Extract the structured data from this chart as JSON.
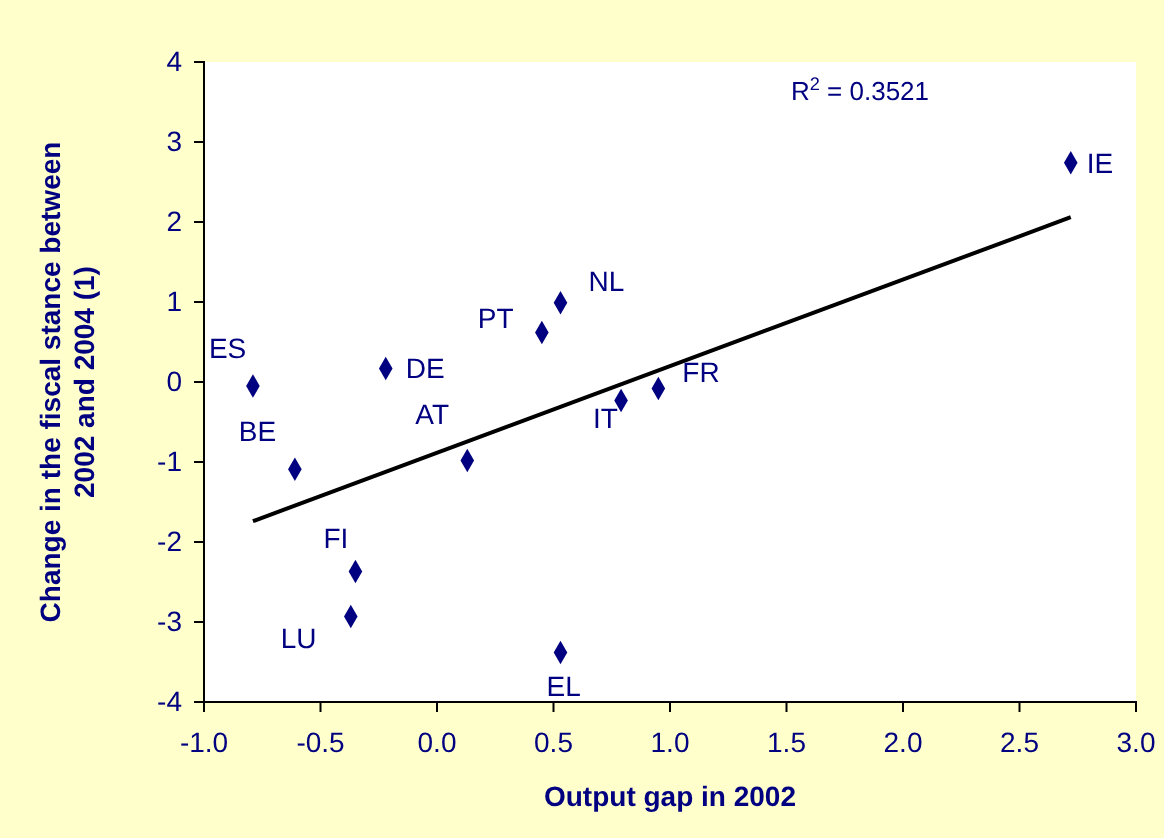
{
  "chart_data": {
    "type": "scatter",
    "xlabel": "Output gap in 2002",
    "ylabel": "Change in the fiscal stance between 2002 and 2004 (1)",
    "series": [
      {
        "color": "#000080",
        "marker": "diamond",
        "x": [
          -0.79,
          -0.61,
          -0.22,
          0.13,
          0.45,
          0.53,
          0.79,
          0.95,
          2.72,
          -0.35,
          -0.37,
          0.53
        ],
        "values": [
          -0.05,
          -1.09,
          0.17,
          -0.98,
          0.62,
          0.99,
          -0.23,
          -0.08,
          2.74,
          -2.37,
          -2.93,
          -3.38
        ]
      },
      {
        "type": "line",
        "color": "#000000",
        "x": [
          -0.79,
          2.72
        ],
        "values": [
          -1.74,
          2.06
        ]
      }
    ],
    "annotations": [
      {
        "text": "ES",
        "x": -0.79,
        "y": -0.05
      },
      {
        "text": "BE",
        "x": -0.61,
        "y": -1.09
      },
      {
        "text": "DE",
        "x": -0.22,
        "y": 0.17
      },
      {
        "text": "AT",
        "x": 0.13,
        "y": -0.98
      },
      {
        "text": "PT",
        "x": 0.45,
        "y": 0.62
      },
      {
        "text": "NL",
        "x": 0.53,
        "y": 0.99
      },
      {
        "text": "IT",
        "x": 0.79,
        "y": -0.23
      },
      {
        "text": "FR",
        "x": 0.95,
        "y": -0.08
      },
      {
        "text": "IE",
        "x": 2.72,
        "y": 2.74
      },
      {
        "text": "FI",
        "x": -0.35,
        "y": -2.37
      },
      {
        "text": "LU",
        "x": -0.37,
        "y": -2.93
      },
      {
        "text": "EL",
        "x": 0.53,
        "y": -3.38
      },
      "R$^{2}$ = 0.3521"
    ],
    "xlim": [
      -1,
      3
    ],
    "ylim": [
      -4,
      4
    ],
    "xticks": [
      {
        "value": -1,
        "label": "-1.0"
      },
      {
        "value": -0.5,
        "label": "-0.5"
      },
      {
        "value": 0,
        "label": "0.0"
      },
      {
        "value": 0.5,
        "label": "0.5"
      },
      {
        "value": 1,
        "label": "1.0"
      },
      {
        "value": 1.5,
        "label": "1.5"
      },
      {
        "value": 2,
        "label": "2.0"
      },
      {
        "value": 2.5,
        "label": "2.5"
      },
      {
        "value": 3,
        "label": "3.0"
      }
    ],
    "yticks": [
      -4,
      -3,
      -2,
      -1,
      0,
      1,
      2,
      3,
      4
    ],
    "grid": false
  }
}
